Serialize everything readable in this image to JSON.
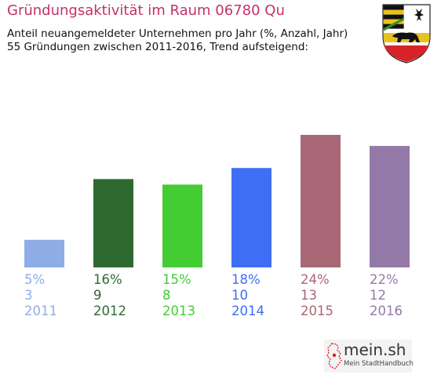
{
  "header": {
    "title": "Gründungsaktivität im Raum 06780 Qu",
    "subtitle_line1": "Anteil neuangemeldeter Unternehmen pro Jahr (%, Anzahl, Jahr)",
    "subtitle_line2": "55 Gründungen zwischen 2011-2016, Trend aufsteigend:"
  },
  "branding": {
    "name": "mein.sh",
    "tagline": "Mein StadtHandbuch"
  },
  "chart_data": {
    "type": "bar",
    "title": "Gründungsaktivität im Raum 06780 Qu",
    "categories": [
      "2011",
      "2012",
      "2013",
      "2014",
      "2015",
      "2016"
    ],
    "values": [
      5,
      16,
      15,
      18,
      24,
      22
    ],
    "percent_labels": [
      "5%",
      "16%",
      "15%",
      "18%",
      "24%",
      "22%"
    ],
    "counts": [
      3,
      9,
      8,
      10,
      13,
      12
    ],
    "colors": [
      "#8eade6",
      "#2e6930",
      "#44cc33",
      "#3d6ef4",
      "#a86774",
      "#9379a8"
    ],
    "ylim": [
      0,
      24
    ],
    "xlabel": "",
    "ylabel": "",
    "grid": false
  }
}
